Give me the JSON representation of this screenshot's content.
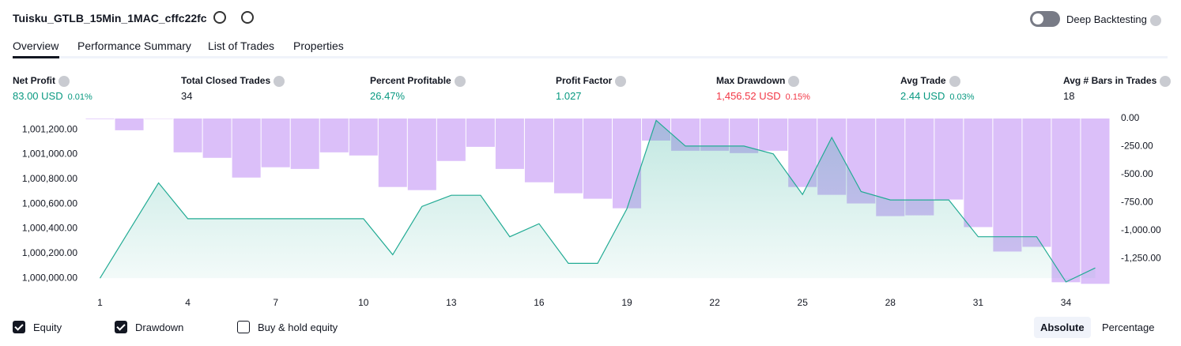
{
  "header": {
    "title": "Tuisku_GTLB_15Min_1MAC_cffc22fc",
    "deep_backtesting": "Deep Backtesting"
  },
  "tabs": [
    "Overview",
    "Performance Summary",
    "List of Trades",
    "Properties"
  ],
  "metrics": [
    {
      "label": "Net Profit",
      "value": "83.00 USD",
      "pct": "0.01%",
      "tone": "pos"
    },
    {
      "label": "Total Closed Trades",
      "value": "34",
      "tone": "neutral"
    },
    {
      "label": "Percent Profitable",
      "value": "26.47%",
      "tone": "pos"
    },
    {
      "label": "Profit Factor",
      "value": "1.027",
      "tone": "pos"
    },
    {
      "label": "Max Drawdown",
      "value": "1,456.52 USD",
      "pct": "0.15%",
      "tone": "neg"
    },
    {
      "label": "Avg Trade",
      "value": "2.44 USD",
      "pct": "0.03%",
      "tone": "pos"
    },
    {
      "label": "Avg # Bars in Trades",
      "value": "18",
      "tone": "neutral"
    }
  ],
  "chart_data": {
    "type": "line",
    "x": [
      1,
      2,
      3,
      4,
      5,
      6,
      7,
      8,
      9,
      10,
      11,
      12,
      13,
      14,
      15,
      16,
      17,
      18,
      19,
      20,
      21,
      22,
      23,
      24,
      25,
      26,
      27,
      28,
      29,
      30,
      31,
      32,
      33,
      34,
      35
    ],
    "xlim": [
      0.5,
      35.5
    ],
    "xticks": [
      1,
      4,
      7,
      10,
      13,
      16,
      19,
      22,
      25,
      28,
      31,
      34
    ],
    "ylim": [
      999950,
      1001290
    ],
    "yticks": [
      {
        "value": 1000000,
        "label": "1,000,000.00"
      },
      {
        "value": 1000200,
        "label": "1,000,200.00"
      },
      {
        "value": 1000400,
        "label": "1,000,400.00"
      },
      {
        "value": 1000600,
        "label": "1,000,600.00"
      },
      {
        "value": 1000800,
        "label": "1,000,800.00"
      },
      {
        "value": 1001000,
        "label": "1,001,000.00"
      },
      {
        "value": 1001200,
        "label": "1,001,200.00"
      }
    ],
    "y2lim": [
      -1480,
      0
    ],
    "y2ticks": [
      {
        "value": 0,
        "label": "0.00"
      },
      {
        "value": -250,
        "label": "-250.00"
      },
      {
        "value": -500,
        "label": "-500.00"
      },
      {
        "value": -750,
        "label": "-750.00"
      },
      {
        "value": -1000,
        "label": "-1,000.00"
      },
      {
        "value": -1250,
        "label": "-1,250.00"
      }
    ],
    "series": [
      {
        "name": "Equity",
        "color": "#22ab94",
        "values": [
          1000000,
          1000385,
          1000770,
          1000480,
          1000480,
          1000480,
          1000480,
          1000480,
          1000480,
          1000480,
          1000190,
          1000580,
          1000670,
          1000670,
          1000335,
          1000440,
          1000120,
          1000120,
          1000560,
          1001275,
          1001067,
          1001067,
          1001067,
          1001004,
          1000676,
          1001137,
          1000700,
          1000632,
          1000632,
          1000632,
          1000335,
          1000335,
          1000335,
          999970,
          1000083
        ]
      },
      {
        "name": "Drawdown",
        "color": "#cfa9f7",
        "axis": "y2",
        "values": [
          -5,
          -105,
          -3,
          -302,
          -351,
          -527,
          -435,
          -450,
          -302,
          -330,
          -611,
          -639,
          -379,
          -253,
          -450,
          -569,
          -667,
          -716,
          -801,
          -197,
          -288,
          -288,
          -309,
          -288,
          -611,
          -681,
          -758,
          -871,
          -864,
          -723,
          -969,
          -1187,
          -1145,
          -1461,
          -1475
        ]
      }
    ],
    "extra_legend": "Buy & hold equity",
    "modes": [
      "Absolute",
      "Percentage"
    ]
  }
}
